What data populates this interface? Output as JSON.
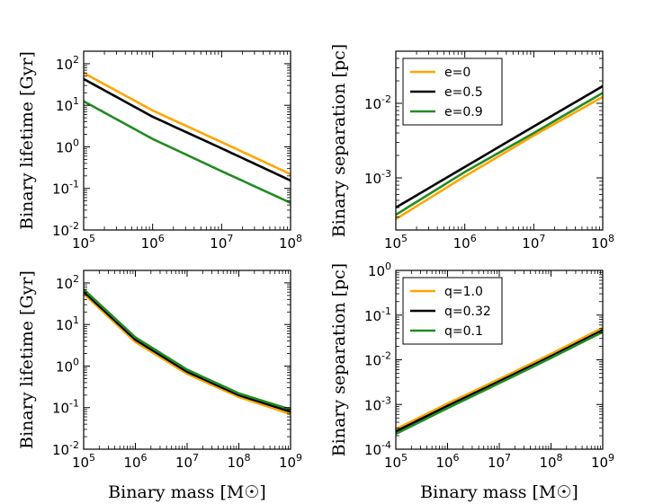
{
  "chart_data": [
    {
      "type": "line",
      "id": "top-left",
      "xscale": "log",
      "yscale": "log",
      "xlim": [
        100000,
        100000000
      ],
      "ylim": [
        0.01,
        200
      ],
      "xlabel": "",
      "ylabel": "Binary lifetime [Gyr]",
      "xticks": [
        {
          "base": "10",
          "exp": "5"
        },
        {
          "base": "10",
          "exp": "6"
        },
        {
          "base": "10",
          "exp": "7"
        },
        {
          "base": "10",
          "exp": "8"
        }
      ],
      "yticks": [
        {
          "base": "10",
          "exp": "-2"
        },
        {
          "base": "10",
          "exp": "-1"
        },
        {
          "base": "10",
          "exp": "0"
        },
        {
          "base": "10",
          "exp": "1"
        },
        {
          "base": "10",
          "exp": "2"
        }
      ],
      "legend": null,
      "series": [
        {
          "name": "e=0",
          "color": "#ffa500",
          "x": [
            100000,
            1000000,
            10000000,
            100000000
          ],
          "y": [
            60,
            7.5,
            1.3,
            0.22
          ]
        },
        {
          "name": "e=0.5",
          "color": "#000000",
          "x": [
            100000,
            1000000,
            10000000,
            100000000
          ],
          "y": [
            43,
            5.3,
            0.92,
            0.155
          ]
        },
        {
          "name": "e=0.9",
          "color": "#228b22",
          "x": [
            100000,
            1000000,
            10000000,
            100000000
          ],
          "y": [
            12.5,
            1.55,
            0.26,
            0.045
          ]
        }
      ]
    },
    {
      "type": "line",
      "id": "top-right",
      "xscale": "log",
      "yscale": "log",
      "xlim": [
        100000,
        100000000
      ],
      "ylim": [
        0.0002,
        0.05
      ],
      "xlabel": "",
      "ylabel": "Binary separation [pc]",
      "xticks": [
        {
          "base": "10",
          "exp": "5"
        },
        {
          "base": "10",
          "exp": "6"
        },
        {
          "base": "10",
          "exp": "7"
        },
        {
          "base": "10",
          "exp": "8"
        }
      ],
      "yticks": [
        {
          "base": "10",
          "exp": "-3"
        },
        {
          "base": "10",
          "exp": "-2"
        }
      ],
      "legend": {
        "placement": "top-left",
        "entries": [
          {
            "label": "e=0",
            "color": "#ffa500"
          },
          {
            "label": "e=0.5",
            "color": "#000000"
          },
          {
            "label": "e=0.9",
            "color": "#228b22"
          }
        ]
      },
      "series": [
        {
          "name": "e=0",
          "color": "#ffa500",
          "x": [
            100000,
            1000000,
            10000000,
            100000000
          ],
          "y": [
            0.00028,
            0.00105,
            0.0037,
            0.0122
          ]
        },
        {
          "name": "e=0.5",
          "color": "#000000",
          "x": [
            100000,
            1000000,
            10000000,
            100000000
          ],
          "y": [
            0.0004,
            0.0014,
            0.0049,
            0.017
          ]
        },
        {
          "name": "e=0.9",
          "color": "#228b22",
          "x": [
            100000,
            1000000,
            10000000,
            100000000
          ],
          "y": [
            0.00032,
            0.0012,
            0.004,
            0.0138
          ]
        }
      ]
    },
    {
      "type": "line",
      "id": "bottom-left",
      "xscale": "log",
      "yscale": "log",
      "xlim": [
        100000,
        1000000000
      ],
      "ylim": [
        0.01,
        200
      ],
      "xlabel": "Binary mass [M☉]",
      "ylabel": "Binary lifetime [Gyr]",
      "xticks": [
        {
          "base": "10",
          "exp": "5"
        },
        {
          "base": "10",
          "exp": "6"
        },
        {
          "base": "10",
          "exp": "7"
        },
        {
          "base": "10",
          "exp": "8"
        },
        {
          "base": "10",
          "exp": "9"
        }
      ],
      "yticks": [
        {
          "base": "10",
          "exp": "-2"
        },
        {
          "base": "10",
          "exp": "-1"
        },
        {
          "base": "10",
          "exp": "0"
        },
        {
          "base": "10",
          "exp": "1"
        },
        {
          "base": "10",
          "exp": "2"
        }
      ],
      "legend": null,
      "series": [
        {
          "name": "q=1.0",
          "color": "#ffa500",
          "x": [
            100000,
            1000000,
            10000000,
            100000000,
            1000000000
          ],
          "y": [
            55,
            3.8,
            0.65,
            0.18,
            0.07
          ]
        },
        {
          "name": "q=0.32",
          "color": "#000000",
          "x": [
            100000,
            1000000,
            10000000,
            100000000,
            1000000000
          ],
          "y": [
            62,
            4.3,
            0.73,
            0.2,
            0.08
          ]
        },
        {
          "name": "q=0.1",
          "color": "#228b22",
          "x": [
            100000,
            1000000,
            10000000,
            100000000,
            1000000000
          ],
          "y": [
            70,
            4.9,
            0.82,
            0.22,
            0.09
          ]
        }
      ]
    },
    {
      "type": "line",
      "id": "bottom-right",
      "xscale": "log",
      "yscale": "log",
      "xlim": [
        100000,
        1000000000
      ],
      "ylim": [
        0.0001,
        1
      ],
      "xlabel": "Binary mass [M☉]",
      "ylabel": "Binary separation [pc]",
      "xticks": [
        {
          "base": "10",
          "exp": "5"
        },
        {
          "base": "10",
          "exp": "6"
        },
        {
          "base": "10",
          "exp": "7"
        },
        {
          "base": "10",
          "exp": "8"
        },
        {
          "base": "10",
          "exp": "9"
        }
      ],
      "yticks": [
        {
          "base": "10",
          "exp": "-4"
        },
        {
          "base": "10",
          "exp": "-3"
        },
        {
          "base": "10",
          "exp": "-2"
        },
        {
          "base": "10",
          "exp": "-1"
        },
        {
          "base": "10",
          "exp": "0"
        }
      ],
      "legend": {
        "placement": "top-left",
        "entries": [
          {
            "label": "q=1.0",
            "color": "#ffa500"
          },
          {
            "label": "q=0.32",
            "color": "#000000"
          },
          {
            "label": "q=0.1",
            "color": "#228b22"
          }
        ]
      },
      "series": [
        {
          "name": "q=1.0",
          "color": "#ffa500",
          "x": [
            100000,
            1000000,
            10000000,
            100000000,
            1000000000
          ],
          "y": [
            0.00028,
            0.00105,
            0.0037,
            0.0135,
            0.052
          ]
        },
        {
          "name": "q=0.32",
          "color": "#000000",
          "x": [
            100000,
            1000000,
            10000000,
            100000000,
            1000000000
          ],
          "y": [
            0.00025,
            0.00093,
            0.0033,
            0.012,
            0.046
          ]
        },
        {
          "name": "q=0.1",
          "color": "#228b22",
          "x": [
            100000,
            1000000,
            10000000,
            100000000,
            1000000000
          ],
          "y": [
            0.00022,
            0.00083,
            0.003,
            0.011,
            0.042
          ]
        }
      ]
    }
  ]
}
